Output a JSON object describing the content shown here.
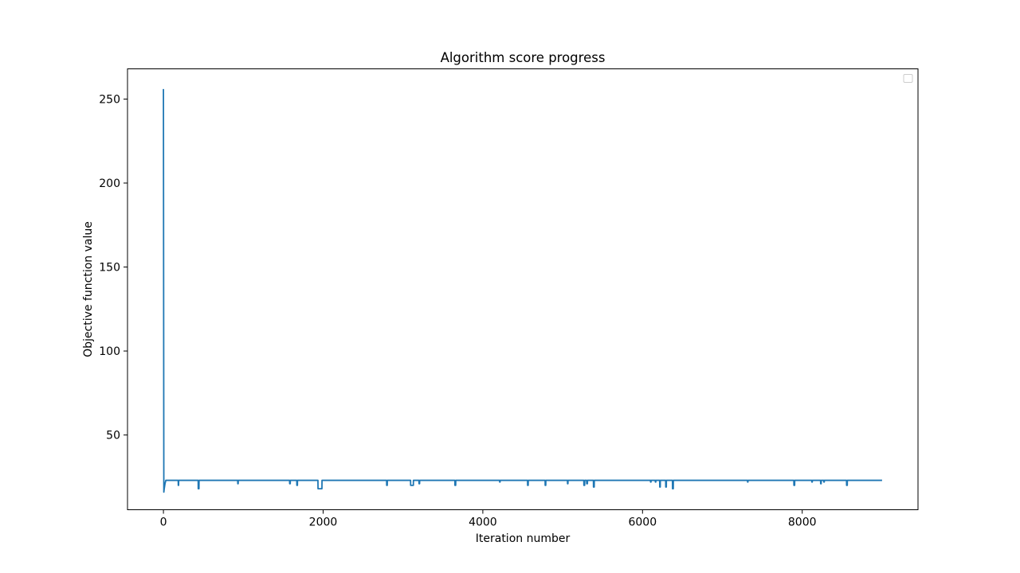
{
  "chart_data": {
    "type": "line",
    "title": "Algorithm score progress",
    "xlabel": "Iteration number",
    "ylabel": "Objective function value",
    "xlim": [
      -450,
      9450
    ],
    "ylim": [
      5.5,
      268
    ],
    "xticks": [
      0,
      2000,
      4000,
      6000,
      8000
    ],
    "yticks": [
      50,
      100,
      150,
      200,
      250
    ],
    "grid": false,
    "legend": {
      "placement": "top-right",
      "entries": []
    },
    "series": [
      {
        "color": "#1f77b4",
        "x": [
          0,
          5,
          10,
          20,
          30,
          185,
          186,
          190,
          191,
          435,
          436,
          445,
          446,
          930,
          931,
          936,
          937,
          1580,
          1581,
          1588,
          1589,
          1670,
          1671,
          1678,
          1679,
          1935,
          1936,
          1985,
          1986,
          2795,
          2796,
          2803,
          2804,
          3095,
          3096,
          3130,
          3131,
          3200,
          3201,
          3208,
          3209,
          3650,
          3651,
          3660,
          3661,
          4210,
          4211,
          4216,
          4217,
          4560,
          4561,
          4568,
          4569,
          4780,
          4781,
          4788,
          4789,
          5060,
          5061,
          5066,
          5067,
          5265,
          5266,
          5275,
          5276,
          5300,
          5301,
          5310,
          5311,
          5385,
          5386,
          5395,
          5396,
          6100,
          6101,
          6106,
          6107,
          6160,
          6161,
          6166,
          6167,
          6215,
          6216,
          6222,
          6223,
          6290,
          6291,
          6298,
          6299,
          6375,
          6376,
          6385,
          6386,
          7315,
          7316,
          7320,
          7321,
          7895,
          7896,
          7905,
          7906,
          8120,
          8121,
          8126,
          8127,
          8230,
          8231,
          8237,
          8238,
          8270,
          8271,
          8276,
          8277,
          8555,
          8556,
          8564,
          8565,
          9000
        ],
        "y": [
          256,
          16,
          18,
          21,
          23,
          23,
          20,
          20,
          23,
          23,
          18,
          18,
          23,
          23,
          21,
          21,
          23,
          23,
          21,
          21,
          23,
          23,
          20,
          20,
          23,
          23,
          18,
          18,
          23,
          23,
          20,
          20,
          23,
          23,
          20,
          20,
          23,
          23,
          21,
          21,
          23,
          23,
          20,
          20,
          23,
          23,
          22,
          22,
          23,
          23,
          20,
          20,
          23,
          23,
          20,
          20,
          23,
          23,
          21,
          21,
          23,
          23,
          20,
          20,
          23,
          23,
          21,
          21,
          23,
          23,
          19,
          19,
          23,
          23,
          22,
          22,
          23,
          23,
          22,
          22,
          23,
          23,
          19,
          19,
          23,
          23,
          19,
          19,
          23,
          23,
          18,
          18,
          23,
          23,
          22,
          22,
          23,
          23,
          20,
          20,
          23,
          23,
          22,
          22,
          23,
          23,
          21,
          21,
          23,
          23,
          22,
          22,
          23,
          23,
          20,
          20,
          23,
          23
        ]
      }
    ]
  }
}
